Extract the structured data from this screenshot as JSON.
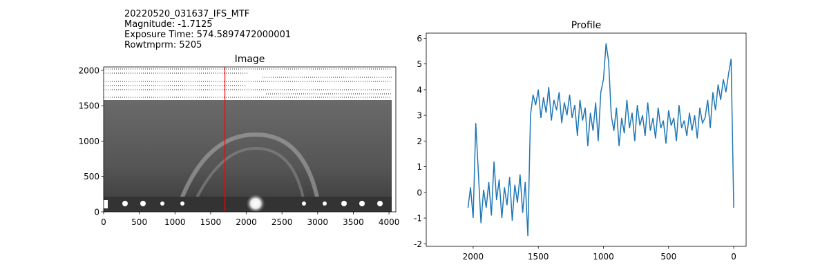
{
  "chart_data": [
    {
      "type": "image",
      "title": "Image",
      "header_lines": [
        "20220520_031637_IFS_MTF",
        "Magnitude: -1.7125",
        "Exposure Time: 574.5897472000001",
        "Rowtmprm: 5205"
      ],
      "xlim": [
        0,
        4096
      ],
      "ylim": [
        0,
        2048
      ],
      "xticks": [
        0,
        500,
        1000,
        1500,
        2000,
        2500,
        3000,
        3500,
        4000
      ],
      "yticks": [
        0,
        500,
        1000,
        1500,
        2000
      ],
      "marker_x": 1700,
      "marker_color": "#ff0000"
    },
    {
      "type": "line",
      "title": "Profile",
      "color": "#1f77b4",
      "xlim": [
        2360,
        -95
      ],
      "ylim": [
        -2.1,
        6.2
      ],
      "xticks": [
        2000,
        1500,
        1000,
        500,
        0
      ],
      "yticks": [
        -2,
        -1,
        0,
        1,
        2,
        3,
        4,
        5,
        6
      ],
      "x": [
        2040,
        2020,
        2000,
        1980,
        1960,
        1940,
        1920,
        1900,
        1880,
        1860,
        1840,
        1820,
        1800,
        1780,
        1760,
        1740,
        1720,
        1700,
        1680,
        1660,
        1640,
        1620,
        1600,
        1580,
        1560,
        1540,
        1520,
        1500,
        1480,
        1460,
        1440,
        1420,
        1400,
        1380,
        1360,
        1340,
        1320,
        1300,
        1280,
        1260,
        1240,
        1220,
        1200,
        1180,
        1160,
        1140,
        1120,
        1100,
        1080,
        1060,
        1040,
        1020,
        1000,
        980,
        960,
        940,
        920,
        900,
        880,
        860,
        840,
        820,
        800,
        780,
        760,
        740,
        720,
        700,
        680,
        660,
        640,
        620,
        600,
        580,
        560,
        540,
        520,
        500,
        480,
        460,
        440,
        420,
        400,
        380,
        360,
        340,
        320,
        300,
        280,
        260,
        240,
        220,
        200,
        180,
        160,
        140,
        120,
        100,
        80,
        60,
        40,
        20,
        0
      ],
      "values": [
        -0.6,
        0.2,
        -1.0,
        2.7,
        0.8,
        -1.2,
        0.1,
        -0.6,
        0.4,
        -0.9,
        1.2,
        -0.3,
        0.5,
        -1.0,
        0.2,
        -0.5,
        0.6,
        -1.1,
        0.3,
        -0.4,
        0.7,
        -0.8,
        0.4,
        -1.7,
        3.0,
        3.8,
        3.4,
        4.0,
        2.9,
        3.7,
        3.1,
        4.1,
        2.8,
        3.6,
        3.2,
        3.9,
        2.7,
        3.5,
        3.0,
        3.8,
        2.9,
        3.4,
        2.2,
        3.6,
        2.8,
        3.3,
        1.8,
        3.1,
        2.4,
        3.5,
        2.0,
        3.9,
        4.4,
        5.8,
        5.1,
        3.0,
        2.4,
        3.3,
        1.8,
        2.9,
        2.3,
        3.6,
        2.5,
        3.1,
        2.0,
        3.4,
        2.6,
        3.0,
        2.2,
        3.5,
        2.4,
        2.9,
        2.1,
        3.3,
        2.5,
        2.8,
        1.9,
        3.2,
        2.6,
        2.9,
        2.0,
        3.4,
        2.5,
        2.8,
        2.2,
        3.1,
        2.4,
        3.0,
        2.1,
        3.3,
        2.7,
        2.9,
        3.6,
        2.5,
        3.9,
        3.2,
        4.2,
        3.6,
        4.4,
        3.9,
        4.6,
        5.2,
        -0.6
      ]
    }
  ]
}
